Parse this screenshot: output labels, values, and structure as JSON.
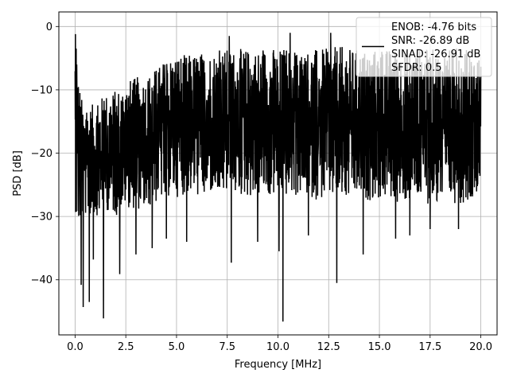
{
  "chart_data": {
    "type": "line",
    "title": "",
    "xlabel": "Frequency [MHz]",
    "ylabel": "PSD [dB]",
    "xlim": [
      -0.8,
      20.8
    ],
    "ylim": [
      -48.7,
      2.3
    ],
    "grid": true,
    "legend_position": "top-right",
    "xticks": [
      0.0,
      2.5,
      5.0,
      7.5,
      10.0,
      12.5,
      15.0,
      17.5,
      20.0
    ],
    "xtick_labels": [
      "0.0",
      "2.5",
      "5.0",
      "7.5",
      "10.0",
      "12.5",
      "15.0",
      "17.5",
      "20.0"
    ],
    "yticks": [
      0,
      -10,
      -20,
      -30,
      -40
    ],
    "ytick_labels": [
      "0",
      "−10",
      "−20",
      "−30",
      "−40"
    ],
    "series": [
      {
        "color": "#000000",
        "x_range": [
          0.0,
          20.0
        ],
        "envelope": {
          "x": [
            0.0,
            0.1,
            0.3,
            0.5,
            1.0,
            1.5,
            2.0,
            2.5,
            3.0,
            3.5,
            4.0,
            4.5,
            5.0,
            5.5,
            6.0,
            6.5,
            7.0,
            7.5,
            8.0,
            8.5,
            9.0,
            9.5,
            10.0,
            10.5,
            11.0,
            11.5,
            12.0,
            12.5,
            13.0,
            13.5,
            14.0,
            14.5,
            15.0,
            15.5,
            16.0,
            16.5,
            17.0,
            17.5,
            18.0,
            18.5,
            19.0,
            19.5,
            20.0
          ],
          "top": [
            -1.0,
            -6.0,
            -11.0,
            -13.0,
            -12.0,
            -10.5,
            -10.0,
            -8.5,
            -8.0,
            -7.5,
            -6.5,
            -5.0,
            -4.0,
            -4.5,
            -4.0,
            -4.0,
            -3.5,
            -3.5,
            -3.5,
            -3.5,
            -3.5,
            -3.0,
            -3.5,
            -3.0,
            -3.5,
            -3.5,
            -3.5,
            -3.5,
            -3.0,
            -3.5,
            -3.5,
            -3.5,
            -3.5,
            -3.5,
            -3.5,
            -3.5,
            -3.5,
            -3.5,
            -3.5,
            -3.5,
            -3.5,
            -3.5,
            -5.0
          ],
          "bottom": [
            -28.0,
            -33.0,
            -31.0,
            -30.0,
            -30.0,
            -29.0,
            -30.0,
            -28.5,
            -29.0,
            -29.0,
            -28.0,
            -27.0,
            -27.0,
            -26.5,
            -27.0,
            -26.5,
            -27.0,
            -27.0,
            -27.0,
            -27.0,
            -27.0,
            -27.0,
            -27.0,
            -27.0,
            -27.0,
            -27.0,
            -27.5,
            -27.5,
            -27.5,
            -27.5,
            -27.5,
            -27.5,
            -27.5,
            -27.5,
            -28.0,
            -28.0,
            -28.0,
            -28.0,
            -28.0,
            -28.0,
            -28.0,
            -27.5,
            -25.0
          ]
        },
        "peaks": [
          [
            0.02,
            -1.2
          ],
          [
            0.05,
            -3.5
          ],
          [
            0.08,
            -6.0
          ],
          [
            7.6,
            -1.5
          ],
          [
            10.6,
            -1.0
          ],
          [
            12.6,
            -1.0
          ],
          [
            18.8,
            -3.5
          ]
        ],
        "dips": [
          [
            0.3,
            -40.8
          ],
          [
            0.4,
            -44.3
          ],
          [
            0.7,
            -43.5
          ],
          [
            0.9,
            -36.8
          ],
          [
            1.4,
            -46.1
          ],
          [
            2.2,
            -39.1
          ],
          [
            3.0,
            -36.0
          ],
          [
            3.8,
            -35.0
          ],
          [
            4.5,
            -33.5
          ],
          [
            5.5,
            -34.0
          ],
          [
            7.7,
            -37.3
          ],
          [
            9.0,
            -34.0
          ],
          [
            10.05,
            -35.5
          ],
          [
            10.25,
            -46.6
          ],
          [
            11.5,
            -33.0
          ],
          [
            12.9,
            -40.5
          ],
          [
            14.2,
            -36.0
          ],
          [
            15.8,
            -33.5
          ],
          [
            16.5,
            -33.0
          ],
          [
            17.5,
            -32.0
          ],
          [
            18.9,
            -32.0
          ]
        ]
      }
    ],
    "legend": {
      "entries": [
        {
          "line_color": "#000000",
          "lines": [
            "ENOB: -4.76 bits",
            "SNR: -26.89 dB",
            "SINAD: -26.91 dB",
            "SFDR: 0.5"
          ]
        }
      ]
    }
  }
}
